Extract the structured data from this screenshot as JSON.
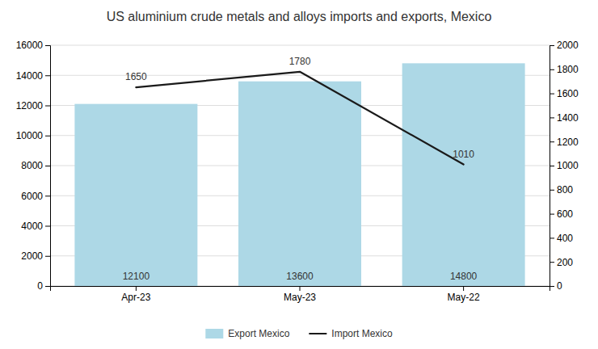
{
  "chart_data": {
    "type": "bar",
    "title": "US aluminium crude metals and alloys imports and exports,  Mexico",
    "categories": [
      "Apr-23",
      "May-23",
      "May-22"
    ],
    "series": [
      {
        "name": "Export Mexico",
        "type": "bar",
        "color": "#add8e6",
        "values": [
          12100,
          13600,
          14800
        ],
        "data_labels": true
      },
      {
        "name": "Import Mexico",
        "type": "line",
        "axis": "y2",
        "color": "#1a1a1a",
        "values": [
          1650,
          1780,
          1010
        ],
        "data_labels": true
      }
    ],
    "ylim": [
      0,
      16000
    ],
    "yticks": [
      0,
      2000,
      4000,
      6000,
      8000,
      10000,
      12000,
      14000,
      16000
    ],
    "y2lim": [
      0,
      2000
    ],
    "y2ticks": [
      0,
      200,
      400,
      600,
      800,
      1000,
      1200,
      1400,
      1600,
      1800,
      2000
    ],
    "grid": true,
    "legend": "bottom"
  }
}
